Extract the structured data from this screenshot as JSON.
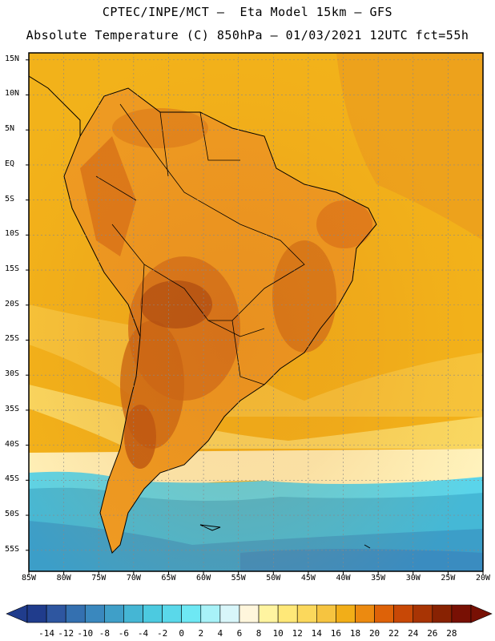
{
  "header": {
    "line1": "CPTEC/INPE/MCT –  Eta Model 15km – GFS",
    "line2": "Absolute Temperature (C) 850hPa – 01/03/2021 12UTC fct=55h"
  },
  "map": {
    "lat_labels": [
      "15N",
      "10N",
      "5N",
      "EQ",
      "5S",
      "10S",
      "15S",
      "20S",
      "25S",
      "30S",
      "35S",
      "40S",
      "45S",
      "50S",
      "55S"
    ],
    "lat_values": [
      15,
      10,
      5,
      0,
      -5,
      -10,
      -15,
      -20,
      -25,
      -30,
      -35,
      -40,
      -45,
      -50,
      -55
    ],
    "lon_labels": [
      "85W",
      "80W",
      "75W",
      "70W",
      "65W",
      "60W",
      "55W",
      "50W",
      "45W",
      "40W",
      "35W",
      "30W",
      "25W",
      "20W"
    ],
    "lon_values": [
      -85,
      -80,
      -75,
      -70,
      -65,
      -60,
      -55,
      -50,
      -45,
      -40,
      -35,
      -30,
      -25,
      -20
    ],
    "extent": {
      "lon_min": -85,
      "lon_max": -20,
      "lat_min": -58,
      "lat_max": 16
    }
  },
  "colorbar": {
    "labels": [
      "-14",
      "-12",
      "-10",
      "-8",
      "-6",
      "-4",
      "-2",
      "0",
      "2",
      "4",
      "6",
      "8",
      "10",
      "12",
      "14",
      "16",
      "18",
      "20",
      "22",
      "24",
      "26",
      "28"
    ],
    "colors": [
      "#203c8c",
      "#2e56a0",
      "#3470b0",
      "#3a88be",
      "#3f9fc8",
      "#45b6d4",
      "#4ccae0",
      "#5ad8ea",
      "#6ee8f4",
      "#a8f2f8",
      "#d8f6fa",
      "#fff6dc",
      "#fff4a0",
      "#ffe878",
      "#fbd85c",
      "#f6c440",
      "#f2ae18",
      "#ec8a10",
      "#de6208",
      "#c84806",
      "#a83404",
      "#882202",
      "#781004"
    ]
  }
}
